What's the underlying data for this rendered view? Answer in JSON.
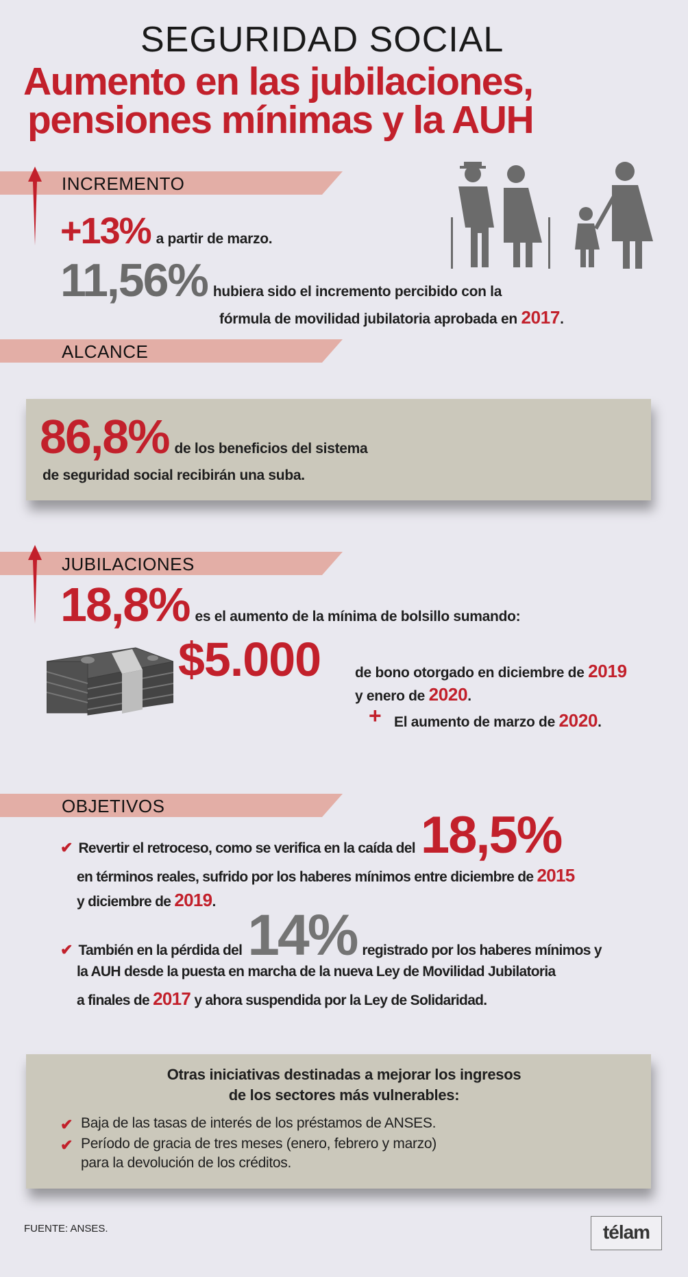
{
  "header": {
    "kicker": "SEGURIDAD SOCIAL",
    "title_line1": "Aumento en las jubilaciones,",
    "title_line2": "pensiones mínimas y la AUH"
  },
  "incremento": {
    "label": "INCREMENTO",
    "pct": "+13%",
    "pct_text": "a partir de marzo.",
    "alt_pct": "11,56%",
    "alt_line1": "hubiera sido el incremento percibido con la",
    "alt_line2": "fórmula de movilidad jubilatoria aprobada en",
    "alt_year": "2017",
    "alt_end": "."
  },
  "alcance": {
    "label": "ALCANCE",
    "pct": "86,8%",
    "line1": "de los beneficios del sistema",
    "line2": "de seguridad social recibirán una suba."
  },
  "jubilaciones": {
    "label": "JUBILACIONES",
    "pct": "18,8%",
    "pct_text": "es el aumento de la mínima de bolsillo sumando:",
    "bono": "$5.000",
    "bono_line1": "de bono otorgado en diciembre de",
    "bono_year1": "2019",
    "bono_line2": "y enero de",
    "bono_year2": "2020",
    "plus": "+",
    "marzo_text": "El aumento de marzo de",
    "marzo_year": "2020",
    "dot": "."
  },
  "objetivos": {
    "label": "OBJETIVOS",
    "check": "✔",
    "item1": {
      "a": "Revertir el retroceso, como se verifica en la caída del",
      "pct": "18,5%",
      "b": "en términos reales, sufrido por los haberes mínimos entre diciembre de",
      "y1": "2015",
      "c": "y diciembre de",
      "y2": "2019",
      "d": "."
    },
    "item2": {
      "a": "También en la pérdida del",
      "pct": "14%",
      "b": "registrado por los haberes mínimos y",
      "c": "la AUH desde la puesta en marcha de la nueva Ley de Movilidad Jubilatoria",
      "d": "a finales de",
      "y": "2017",
      "e": "y ahora suspendida por la Ley de Solidaridad."
    }
  },
  "otras": {
    "title1": "Otras iniciativas destinadas a mejorar los ingresos",
    "title2": "de los sectores más vulnerables:",
    "items": [
      "Baja de las tasas de interés de los préstamos de ANSES.",
      "Período de gracia de tres meses (enero, febrero y marzo)",
      "para la devolución de los créditos."
    ]
  },
  "footer": {
    "source": "FUENTE: ANSES.",
    "logo": "télam"
  },
  "colors": {
    "accent": "#c2202b",
    "band": "#e3aea6",
    "box": "#cbc8bb",
    "background": "#e9e8ef",
    "figure": "#6b6b6b"
  },
  "icons": [
    "arrow-up-icon",
    "family-icon",
    "money-stack-icon",
    "check-icon"
  ]
}
